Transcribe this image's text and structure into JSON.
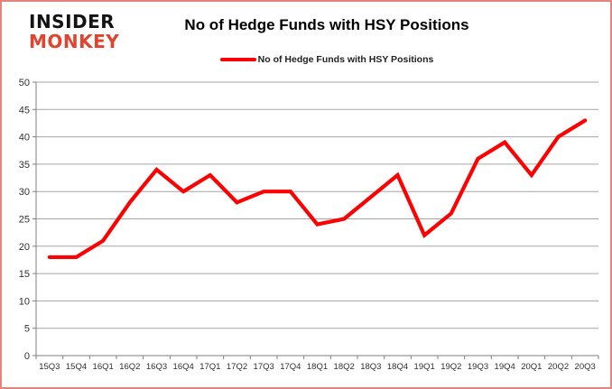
{
  "logo": {
    "line1": "INSIDER",
    "line2": "MONKEY"
  },
  "header": {
    "title": "No of Hedge Funds with HSY Positions"
  },
  "legend": {
    "label": "No of Hedge Funds with HSY Positions",
    "line_color": "#ff0000"
  },
  "colors": {
    "series": "#ff0000",
    "grid": "#a6a6a6",
    "axis": "#7f7f7f",
    "label": "#303030",
    "logo_black": "#131313",
    "logo_red": "#e2432d",
    "page_border": "#e5837e"
  },
  "chart_data": {
    "type": "line",
    "title": "No of Hedge Funds with HSY Positions",
    "categories": [
      "15Q3",
      "15Q4",
      "16Q1",
      "16Q2",
      "16Q3",
      "16Q4",
      "17Q1",
      "17Q2",
      "17Q3",
      "17Q4",
      "18Q1",
      "18Q2",
      "18Q3",
      "18Q4",
      "19Q1",
      "19Q2",
      "19Q3",
      "19Q4",
      "20Q1",
      "20Q2",
      "20Q3"
    ],
    "series": [
      {
        "name": "No of Hedge Funds with HSY Positions",
        "color": "#ff0000",
        "values": [
          18,
          18,
          21,
          28,
          34,
          30,
          33,
          28,
          30,
          30,
          24,
          25,
          29,
          33,
          22,
          26,
          36,
          39,
          33,
          40,
          43
        ]
      }
    ],
    "xlabel": "",
    "ylabel": "",
    "ylim": [
      0,
      50
    ],
    "ytick_step": 5,
    "grid": "horizontal",
    "legend_position": "top-center"
  }
}
